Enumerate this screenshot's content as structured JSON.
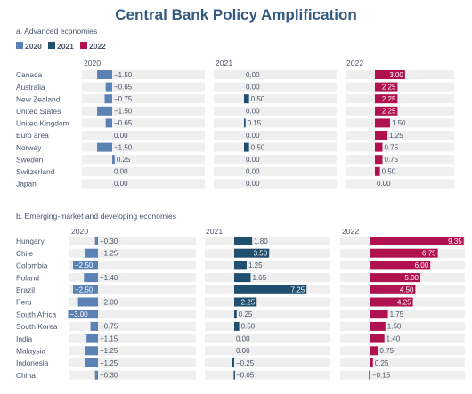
{
  "title": "Central Bank Policy Amplification",
  "legend": [
    {
      "label": "2020",
      "color": "#5b82b5"
    },
    {
      "label": "2021",
      "color": "#1f4e6e"
    },
    {
      "label": "2022",
      "color": "#b0124f"
    }
  ],
  "colors": {
    "bg_bar": "#efefef",
    "title": "#355a80",
    "text": "#4a5568"
  },
  "chart_data": [
    {
      "type": "bar",
      "subtitle": "a. Advanced economies",
      "columns": [
        "2020",
        "2021",
        "2022"
      ],
      "categories": [
        "Canada",
        "Australia",
        "New Zealand",
        "United States",
        "United Kingdom",
        "Euro area",
        "Norway",
        "Sweden",
        "Switzerland",
        "Japan"
      ],
      "series": [
        {
          "name": "2020",
          "values": [
            -1.5,
            -0.65,
            -0.75,
            -1.5,
            -0.65,
            0.0,
            -1.5,
            0.25,
            0.0,
            0.0
          ],
          "labels": [
            "−1.50",
            "−0.65",
            "−0.75",
            "−1.50",
            "−0.65",
            "0.00",
            "−1.50",
            "0.25",
            "0.00",
            "0.00"
          ]
        },
        {
          "name": "2021",
          "values": [
            0.0,
            0.0,
            0.5,
            0.0,
            0.15,
            0.0,
            0.5,
            0.0,
            0.0,
            0.0
          ],
          "labels": [
            "0.00",
            "0.00",
            "0.50",
            "0.00",
            "0.15",
            "0.00",
            "0.50",
            "0.00",
            "0.00",
            "0.00"
          ]
        },
        {
          "name": "2022",
          "values": [
            3.0,
            2.25,
            2.25,
            2.25,
            1.5,
            1.25,
            0.75,
            0.75,
            0.5,
            0.0
          ],
          "labels": [
            "3.00",
            "2.25",
            "2.25",
            "2.25",
            "1.50",
            "1.25",
            "0.75",
            "0.75",
            "0.50",
            "0.00"
          ]
        }
      ]
    },
    {
      "type": "bar",
      "subtitle": "b. Emerging-market and developing economies",
      "columns": [
        "2020",
        "2021",
        "2022"
      ],
      "categories": [
        "Hungary",
        "Chile",
        "Colombia",
        "Poland",
        "Brazil",
        "Peru",
        "South Africa",
        "South Korea",
        "India",
        "Malaysia",
        "Indonesia",
        "China"
      ],
      "series": [
        {
          "name": "2020",
          "values": [
            -0.3,
            -1.25,
            -2.5,
            -1.4,
            -2.5,
            -2.0,
            -3.0,
            -0.75,
            -1.15,
            -1.25,
            -1.25,
            -0.3
          ],
          "labels": [
            "−0.30",
            "−1.25",
            "−2.50",
            "−1.40",
            "−2.50",
            "−2.00",
            "−3.00",
            "−0.75",
            "−1.15",
            "−1.25",
            "−1.25",
            "−0.30"
          ]
        },
        {
          "name": "2021",
          "values": [
            1.8,
            3.5,
            1.25,
            1.65,
            7.25,
            2.25,
            0.25,
            0.5,
            0.0,
            0.0,
            -0.25,
            -0.05
          ],
          "labels": [
            "1.80",
            "3.50",
            "1.25",
            "1.65",
            "7.25",
            "2.25",
            "0.25",
            "0.50",
            "0.00",
            "0.00",
            "−0.25",
            "−0.05"
          ]
        },
        {
          "name": "2022",
          "values": [
            9.35,
            6.75,
            6.0,
            5.0,
            4.5,
            4.25,
            1.75,
            1.5,
            1.4,
            0.75,
            0.25,
            -0.15
          ],
          "labels": [
            "9.35",
            "6.75",
            "6.00",
            "5.00",
            "4.50",
            "4.25",
            "1.75",
            "1.50",
            "1.40",
            "0.75",
            "0.25",
            "−0.15"
          ]
        }
      ]
    }
  ]
}
